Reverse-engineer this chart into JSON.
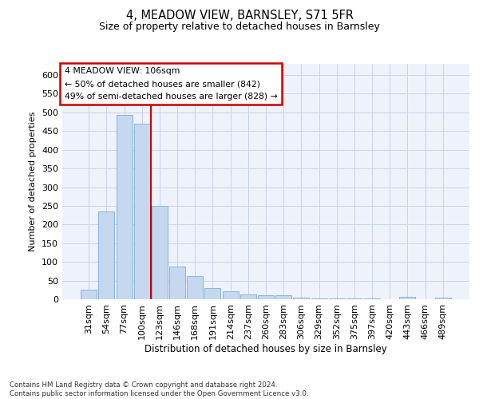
{
  "title": "4, MEADOW VIEW, BARNSLEY, S71 5FR",
  "subtitle": "Size of property relative to detached houses in Barnsley",
  "xlabel": "Distribution of detached houses by size in Barnsley",
  "ylabel": "Number of detached properties",
  "footer_line1": "Contains HM Land Registry data © Crown copyright and database right 2024.",
  "footer_line2": "Contains public sector information licensed under the Open Government Licence v3.0.",
  "annotation_line1": "4 MEADOW VIEW: 106sqm",
  "annotation_line2": "← 50% of detached houses are smaller (842)",
  "annotation_line3": "49% of semi-detached houses are larger (828) →",
  "bar_color": "#c5d8f0",
  "bar_edge_color": "#7aaed6",
  "redline_color": "#cc0000",
  "annotation_box_color": "#cc0000",
  "grid_color": "#c8d4e8",
  "bg_color": "#eef2fa",
  "categories": [
    "31sqm",
    "54sqm",
    "77sqm",
    "100sqm",
    "123sqm",
    "146sqm",
    "168sqm",
    "191sqm",
    "214sqm",
    "237sqm",
    "260sqm",
    "283sqm",
    "306sqm",
    "329sqm",
    "352sqm",
    "375sqm",
    "397sqm",
    "420sqm",
    "443sqm",
    "466sqm",
    "489sqm"
  ],
  "values": [
    25,
    235,
    493,
    470,
    250,
    88,
    62,
    30,
    22,
    12,
    10,
    10,
    5,
    3,
    2,
    2,
    2,
    1,
    6,
    1,
    4
  ],
  "redline_x": 3.5,
  "ylim": [
    0,
    630
  ],
  "yticks": [
    0,
    50,
    100,
    150,
    200,
    250,
    300,
    350,
    400,
    450,
    500,
    550,
    600
  ]
}
